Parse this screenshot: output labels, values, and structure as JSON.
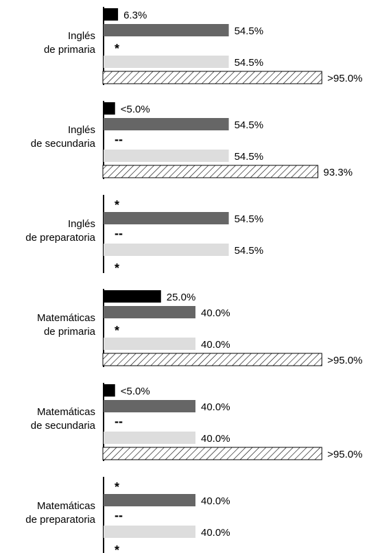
{
  "chart_data": {
    "type": "bar",
    "orientation": "horizontal",
    "xlim": [
      0,
      100
    ],
    "colors": {
      "series1": "#000000",
      "series2": "#666666",
      "series3": "#dddddd",
      "series4": "hatched"
    },
    "groups": [
      {
        "label_lines": [
          "Inglés",
          "de primaria"
        ],
        "bars": [
          {
            "value": 6.3,
            "label": "6.3%"
          },
          {
            "value": 54.5,
            "label": "54.5%"
          },
          {
            "value": null,
            "label": "*"
          },
          {
            "value": 54.5,
            "label": "54.5%"
          },
          {
            "value": 95.0,
            "label": ">95.0%"
          }
        ]
      },
      {
        "label_lines": [
          "Inglés",
          "de secundaria"
        ],
        "bars": [
          {
            "value": 5.0,
            "label": "<5.0%"
          },
          {
            "value": 54.5,
            "label": "54.5%"
          },
          {
            "value": null,
            "label": "--"
          },
          {
            "value": 54.5,
            "label": "54.5%"
          },
          {
            "value": 93.3,
            "label": "93.3%"
          }
        ]
      },
      {
        "label_lines": [
          "Inglés",
          "de preparatoria"
        ],
        "bars": [
          {
            "value": null,
            "label": "*"
          },
          {
            "value": 54.5,
            "label": "54.5%"
          },
          {
            "value": null,
            "label": "--"
          },
          {
            "value": 54.5,
            "label": "54.5%"
          },
          {
            "value": null,
            "label": "*"
          }
        ]
      },
      {
        "label_lines": [
          "Matemáticas",
          "de primaria"
        ],
        "bars": [
          {
            "value": 25.0,
            "label": "25.0%"
          },
          {
            "value": 40.0,
            "label": "40.0%"
          },
          {
            "value": null,
            "label": "*"
          },
          {
            "value": 40.0,
            "label": "40.0%"
          },
          {
            "value": 95.0,
            "label": ">95.0%"
          }
        ]
      },
      {
        "label_lines": [
          "Matemáticas",
          "de secundaria"
        ],
        "bars": [
          {
            "value": 5.0,
            "label": "<5.0%"
          },
          {
            "value": 40.0,
            "label": "40.0%"
          },
          {
            "value": null,
            "label": "--"
          },
          {
            "value": 40.0,
            "label": "40.0%"
          },
          {
            "value": 95.0,
            "label": ">95.0%"
          }
        ]
      },
      {
        "label_lines": [
          "Matemáticas",
          "de preparatoria"
        ],
        "bars": [
          {
            "value": null,
            "label": "*"
          },
          {
            "value": 40.0,
            "label": "40.0%"
          },
          {
            "value": null,
            "label": "--"
          },
          {
            "value": 40.0,
            "label": "40.0%"
          },
          {
            "value": null,
            "label": "*"
          }
        ]
      }
    ]
  }
}
